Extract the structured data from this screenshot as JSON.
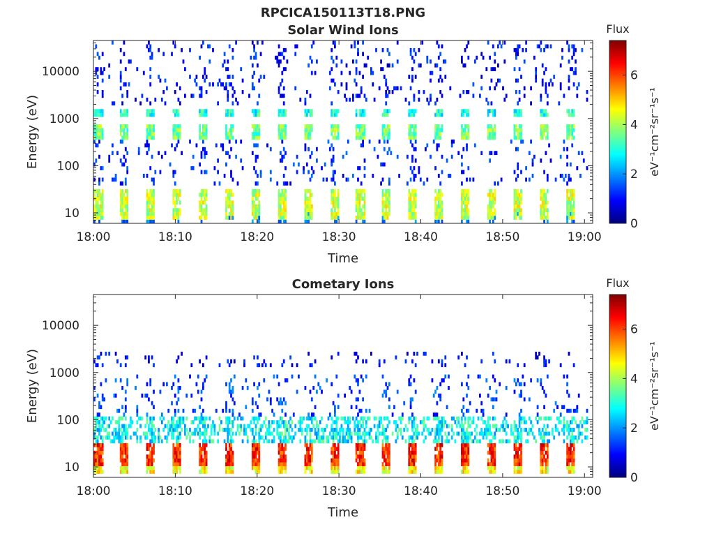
{
  "figure": {
    "title": "RPCICA150113T18.PNG"
  },
  "colormap": {
    "name": "jet",
    "stops": [
      "#00007f",
      "#0000ff",
      "#007fff",
      "#00ffff",
      "#7fff7f",
      "#ffff00",
      "#ff7f00",
      "#ff0000",
      "#7f0000"
    ]
  },
  "chart_data": [
    {
      "type": "heatmap",
      "title": "Solar Wind Ions",
      "xlabel": "Time",
      "ylabel": "Energy (eV)",
      "xticks": [
        "18:00",
        "18:10",
        "18:20",
        "18:30",
        "18:40",
        "18:50",
        "19:00"
      ],
      "xlim_minutes": [
        0,
        61
      ],
      "yscale": "log",
      "ylim": [
        6,
        45000
      ],
      "yticks": [
        10,
        100,
        1000,
        10000
      ],
      "ytick_labels": [
        "10",
        "100",
        "1000",
        "10000"
      ],
      "colorbar": {
        "title": "Flux",
        "label": "eV⁻¹cm⁻²sr⁻¹s⁻¹",
        "range": [
          0,
          7.4
        ],
        "ticks": [
          0,
          2,
          4,
          6
        ]
      },
      "sweep_period_minutes": 3.2,
      "bands": [
        {
          "emin": 7,
          "emax": 30,
          "pattern": "pulse",
          "level": 4.2
        },
        {
          "emin": 6,
          "emax": 11,
          "pattern": "pulse-low",
          "level": 1.8
        },
        {
          "emin": 380,
          "emax": 800,
          "pattern": "pulse",
          "level": 3.6
        },
        {
          "emin": 1150,
          "emax": 1700,
          "pattern": "pulse",
          "level": 3.0
        },
        {
          "emin": 2000,
          "emax": 45000,
          "pattern": "sparse",
          "level": 1.0
        },
        {
          "emin": 40,
          "emax": 380,
          "pattern": "sparse",
          "level": 1.2
        }
      ]
    },
    {
      "type": "heatmap",
      "title": "Cometary Ions",
      "xlabel": "Time",
      "ylabel": "Energy (eV)",
      "xticks": [
        "18:00",
        "18:10",
        "18:20",
        "18:30",
        "18:40",
        "18:50",
        "19:00"
      ],
      "xlim_minutes": [
        0,
        61
      ],
      "yscale": "log",
      "ylim": [
        6,
        45000
      ],
      "yticks": [
        10,
        100,
        1000,
        10000
      ],
      "ytick_labels": [
        "10",
        "100",
        "1000",
        "10000"
      ],
      "colorbar": {
        "title": "Flux",
        "label": "eV⁻¹cm⁻²sr⁻¹s⁻¹",
        "range": [
          0,
          7.4
        ],
        "ticks": [
          0,
          2,
          4,
          6
        ]
      },
      "sweep_period_minutes": 3.2,
      "bands": [
        {
          "emin": 11,
          "emax": 32,
          "pattern": "pulse",
          "level": 6.2
        },
        {
          "emin": 7,
          "emax": 11,
          "pattern": "pulse",
          "level": 4.6
        },
        {
          "emin": 32,
          "emax": 110,
          "pattern": "dense",
          "level": 2.8
        },
        {
          "emin": 110,
          "emax": 900,
          "pattern": "sparse",
          "level": 1.4
        },
        {
          "emin": 1200,
          "emax": 3000,
          "pattern": "sparse",
          "level": 0.9
        }
      ]
    }
  ]
}
